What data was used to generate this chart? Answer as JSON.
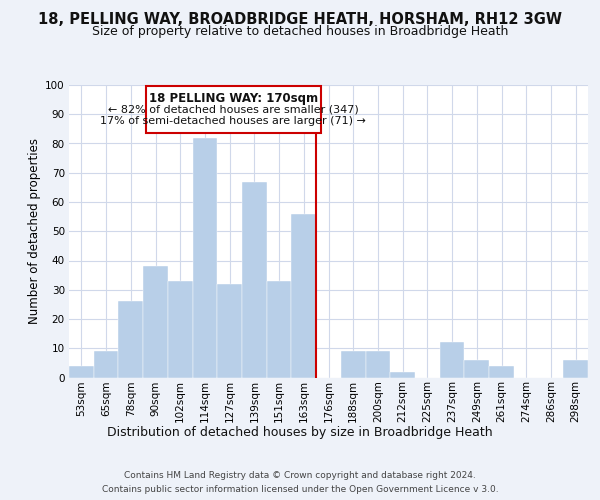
{
  "title1": "18, PELLING WAY, BROADBRIDGE HEATH, HORSHAM, RH12 3GW",
  "title2": "Size of property relative to detached houses in Broadbridge Heath",
  "xlabel": "Distribution of detached houses by size in Broadbridge Heath",
  "ylabel": "Number of detached properties",
  "footer1": "Contains HM Land Registry data © Crown copyright and database right 2024.",
  "footer2": "Contains public sector information licensed under the Open Government Licence v 3.0.",
  "bin_labels": [
    "53sqm",
    "65sqm",
    "78sqm",
    "90sqm",
    "102sqm",
    "114sqm",
    "127sqm",
    "139sqm",
    "151sqm",
    "163sqm",
    "176sqm",
    "188sqm",
    "200sqm",
    "212sqm",
    "225sqm",
    "237sqm",
    "249sqm",
    "261sqm",
    "274sqm",
    "286sqm",
    "298sqm"
  ],
  "bar_heights": [
    4,
    9,
    26,
    38,
    33,
    82,
    32,
    67,
    33,
    56,
    0,
    9,
    9,
    2,
    0,
    12,
    6,
    4,
    0,
    0,
    6
  ],
  "bar_color": "#b8cfe8",
  "annotation_title": "18 PELLING WAY: 170sqm",
  "annotation_line1": "← 82% of detached houses are smaller (347)",
  "annotation_line2": "17% of semi-detached houses are larger (71) →",
  "ylim": [
    0,
    100
  ],
  "yticks": [
    0,
    10,
    20,
    30,
    40,
    50,
    60,
    70,
    80,
    90,
    100
  ],
  "ref_line_bin_index": 10,
  "background_color": "#eef2f9",
  "plot_bg_color": "#ffffff",
  "grid_color": "#d0d8ea",
  "box_color": "#cc0000",
  "title1_fontsize": 10.5,
  "title2_fontsize": 9,
  "ylabel_fontsize": 8.5,
  "xlabel_fontsize": 9,
  "tick_fontsize": 7.5,
  "footer_fontsize": 6.5
}
